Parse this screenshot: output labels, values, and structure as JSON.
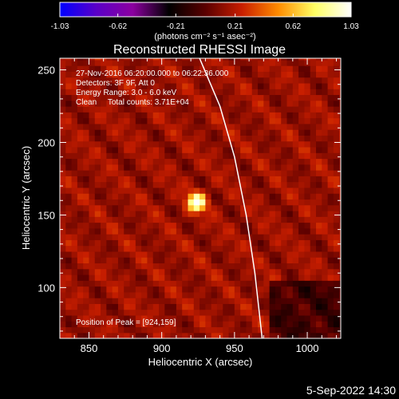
{
  "chart_data": {
    "type": "heatmap",
    "title": "Reconstructed RHESSI Image",
    "xlabel": "Heliocentric X (arcsec)",
    "ylabel": "Heliocentric Y (arcsec)",
    "xlim": [
      830,
      1023
    ],
    "ylim": [
      65,
      258
    ],
    "x_ticks": [
      850,
      900,
      950,
      1000
    ],
    "y_ticks": [
      100,
      150,
      200,
      250
    ],
    "grid": false,
    "colorbar": {
      "orientation": "horizontal",
      "placement": "top",
      "range": [
        -1.03,
        1.03
      ],
      "tick_values": [
        -1.03,
        -0.62,
        -0.21,
        0.21,
        0.62,
        1.03
      ],
      "tick_labels": [
        "-1.03",
        "-0.62",
        "-0.21",
        "0.21",
        "0.62",
        "1.03"
      ],
      "unit_label": "(photons cm⁻² s⁻¹ asec⁻²)",
      "colormap": [
        "#0000ff",
        "#5a00c8",
        "#8c00a0",
        "#000000",
        "#5a0000",
        "#c81e00",
        "#ff8c00",
        "#ffff64",
        "#ffffff"
      ]
    },
    "info_lines": [
      "27-Nov-2016 06:20:00.000 to 06:22:36.000",
      "Detectors: 3F 9F, Att 0",
      "Energy Range: 3.0 - 6.0 keV",
      "Clean     Total counts: 3.71E+04"
    ],
    "peak_label": "Position of Peak = [924,159]",
    "peak": {
      "x": 924,
      "y": 159,
      "value": 1.03
    },
    "limb_curve": [
      [
        926,
        258
      ],
      [
        940,
        225
      ],
      [
        950,
        190
      ],
      [
        958,
        150
      ],
      [
        964,
        110
      ],
      [
        969,
        65
      ]
    ],
    "footer_date": "5-Sep-2022 14:30"
  }
}
